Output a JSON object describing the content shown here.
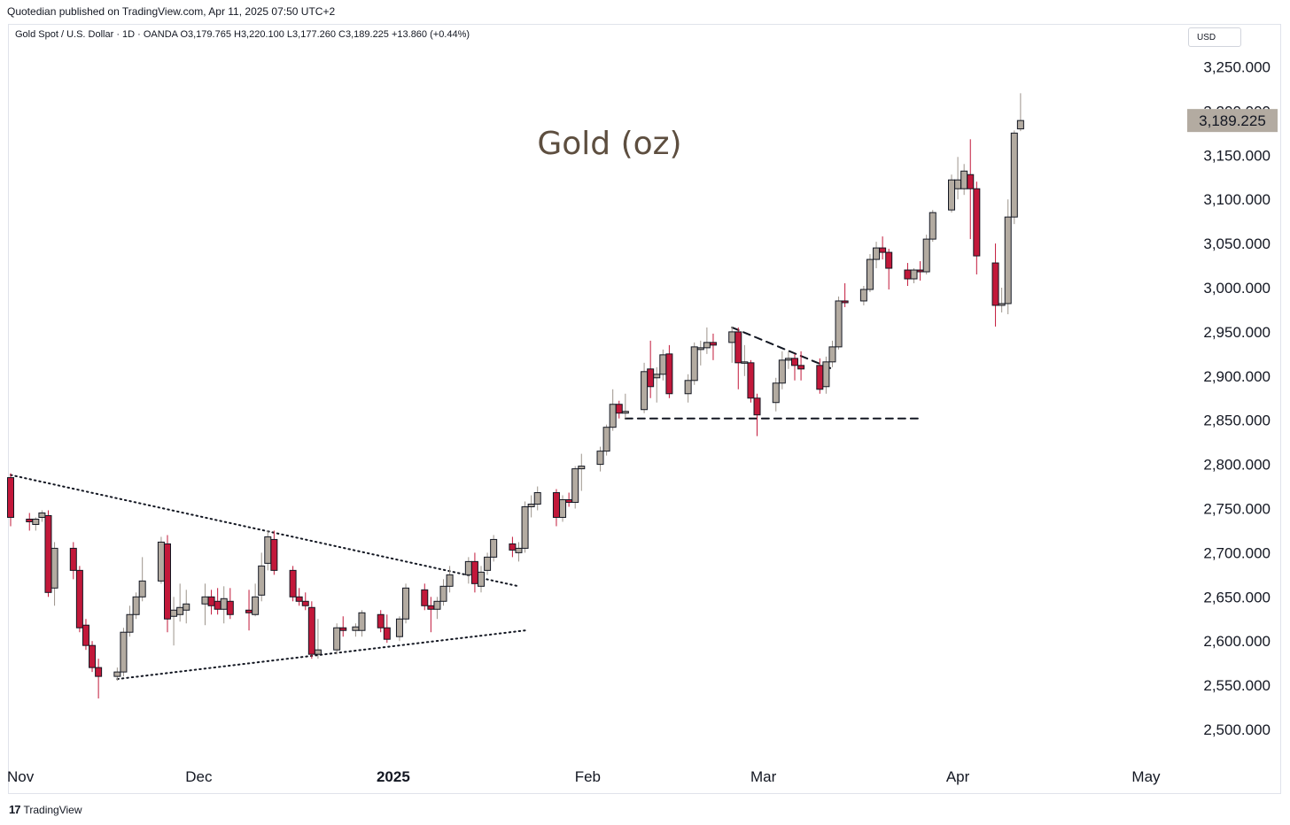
{
  "header": {
    "caption": "Quotedian published on TradingView.com, Apr 11, 2025 07:50 UTC+2",
    "legend": "Gold Spot / U.S. Dollar · 1D · OANDA  O3,179.765  H3,220.100  L3,177.260  C3,189.225  +13.860 (+0.44%)",
    "currency": "USD"
  },
  "footer": {
    "brand": "TradingView",
    "logo_icon": "tradingview-logo-icon"
  },
  "colors": {
    "up": "#b3aba1",
    "down": "#c2183a",
    "price_badge": "#b3aba1",
    "title": "#5d4e3f"
  },
  "chart_data": {
    "type": "candlestick",
    "title": "Gold (oz)",
    "ylim": [
      2475,
      3280
    ],
    "y_ticks": [
      2500,
      2550,
      2600,
      2650,
      2700,
      2750,
      2800,
      2850,
      2900,
      2950,
      3000,
      3050,
      3100,
      3150,
      3200,
      3250
    ],
    "y_tick_labels": [
      "2,500.000",
      "2,550.000",
      "2,600.000",
      "2,650.000",
      "2,700.000",
      "2,750.000",
      "2,800.000",
      "2,850.000",
      "2,900.000",
      "2,950.000",
      "3,000.000",
      "3,050.000",
      "3,100.000",
      "3,150.000",
      "3,200.000",
      "3,250.000"
    ],
    "last_price": 3189.225,
    "last_price_label": "3,189.225",
    "x_labels": [
      {
        "label": "Nov",
        "date": "2024-11-01"
      },
      {
        "label": "Dec",
        "date": "2024-12-01"
      },
      {
        "label": "2025",
        "date": "2025-01-01"
      },
      {
        "label": "Feb",
        "date": "2025-02-01"
      },
      {
        "label": "Mar",
        "date": "2025-03-01"
      },
      {
        "label": "Apr",
        "date": "2025-04-01"
      },
      {
        "label": "May",
        "date": "2025-05-01"
      }
    ],
    "candles": [
      {
        "date": "2024-11-01",
        "o": 2785,
        "h": 2790,
        "l": 2730,
        "c": 2740
      },
      {
        "date": "2024-11-04",
        "o": 2738,
        "h": 2745,
        "l": 2725,
        "c": 2735
      },
      {
        "date": "2024-11-05",
        "o": 2732,
        "h": 2740,
        "l": 2725,
        "c": 2738
      },
      {
        "date": "2024-11-06",
        "o": 2740,
        "h": 2748,
        "l": 2735,
        "c": 2745
      },
      {
        "date": "2024-11-07",
        "o": 2742,
        "h": 2748,
        "l": 2650,
        "c": 2655
      },
      {
        "date": "2024-11-08",
        "o": 2660,
        "h": 2712,
        "l": 2640,
        "c": 2705
      },
      {
        "date": "2024-11-11",
        "o": 2705,
        "h": 2712,
        "l": 2670,
        "c": 2680
      },
      {
        "date": "2024-11-12",
        "o": 2680,
        "h": 2685,
        "l": 2610,
        "c": 2615
      },
      {
        "date": "2024-11-13",
        "o": 2618,
        "h": 2625,
        "l": 2590,
        "c": 2595
      },
      {
        "date": "2024-11-14",
        "o": 2595,
        "h": 2600,
        "l": 2565,
        "c": 2570
      },
      {
        "date": "2024-11-15",
        "o": 2570,
        "h": 2580,
        "l": 2535,
        "c": 2560
      },
      {
        "date": "2024-11-18",
        "o": 2560,
        "h": 2570,
        "l": 2555,
        "c": 2565
      },
      {
        "date": "2024-11-19",
        "o": 2565,
        "h": 2615,
        "l": 2560,
        "c": 2610
      },
      {
        "date": "2024-11-20",
        "o": 2610,
        "h": 2640,
        "l": 2605,
        "c": 2630
      },
      {
        "date": "2024-11-21",
        "o": 2630,
        "h": 2655,
        "l": 2625,
        "c": 2650
      },
      {
        "date": "2024-11-22",
        "o": 2650,
        "h": 2695,
        "l": 2645,
        "c": 2668
      },
      {
        "date": "2024-11-25",
        "o": 2668,
        "h": 2718,
        "l": 2665,
        "c": 2712
      },
      {
        "date": "2024-11-26",
        "o": 2710,
        "h": 2720,
        "l": 2610,
        "c": 2625
      },
      {
        "date": "2024-11-27",
        "o": 2628,
        "h": 2650,
        "l": 2595,
        "c": 2635
      },
      {
        "date": "2024-11-28",
        "o": 2630,
        "h": 2665,
        "l": 2622,
        "c": 2638
      },
      {
        "date": "2024-11-29",
        "o": 2635,
        "h": 2658,
        "l": 2620,
        "c": 2642
      },
      {
        "date": "2024-12-02",
        "o": 2642,
        "h": 2665,
        "l": 2618,
        "c": 2650
      },
      {
        "date": "2024-12-03",
        "o": 2650,
        "h": 2658,
        "l": 2630,
        "c": 2640
      },
      {
        "date": "2024-12-04",
        "o": 2645,
        "h": 2660,
        "l": 2630,
        "c": 2636
      },
      {
        "date": "2024-12-05",
        "o": 2636,
        "h": 2662,
        "l": 2620,
        "c": 2648
      },
      {
        "date": "2024-12-06",
        "o": 2645,
        "h": 2660,
        "l": 2625,
        "c": 2630
      },
      {
        "date": "2024-12-09",
        "o": 2635,
        "h": 2658,
        "l": 2612,
        "c": 2632
      },
      {
        "date": "2024-12-10",
        "o": 2630,
        "h": 2665,
        "l": 2628,
        "c": 2650
      },
      {
        "date": "2024-12-11",
        "o": 2652,
        "h": 2700,
        "l": 2645,
        "c": 2685
      },
      {
        "date": "2024-12-12",
        "o": 2688,
        "h": 2725,
        "l": 2680,
        "c": 2718
      },
      {
        "date": "2024-12-13",
        "o": 2715,
        "h": 2725,
        "l": 2675,
        "c": 2680
      },
      {
        "date": "2024-12-16",
        "o": 2680,
        "h": 2685,
        "l": 2645,
        "c": 2650
      },
      {
        "date": "2024-12-17",
        "o": 2650,
        "h": 2660,
        "l": 2640,
        "c": 2645
      },
      {
        "date": "2024-12-18",
        "o": 2645,
        "h": 2655,
        "l": 2635,
        "c": 2640
      },
      {
        "date": "2024-12-19",
        "o": 2638,
        "h": 2645,
        "l": 2580,
        "c": 2585
      },
      {
        "date": "2024-12-20",
        "o": 2585,
        "h": 2625,
        "l": 2580,
        "c": 2590
      },
      {
        "date": "2024-12-23",
        "o": 2590,
        "h": 2620,
        "l": 2585,
        "c": 2615
      },
      {
        "date": "2024-12-24",
        "o": 2615,
        "h": 2628,
        "l": 2605,
        "c": 2612
      },
      {
        "date": "2024-12-26",
        "o": 2612,
        "h": 2620,
        "l": 2605,
        "c": 2616
      },
      {
        "date": "2024-12-27",
        "o": 2612,
        "h": 2635,
        "l": 2605,
        "c": 2632
      },
      {
        "date": "2024-12-30",
        "o": 2630,
        "h": 2635,
        "l": 2610,
        "c": 2615
      },
      {
        "date": "2024-12-31",
        "o": 2615,
        "h": 2630,
        "l": 2598,
        "c": 2602
      },
      {
        "date": "2025-01-02",
        "o": 2605,
        "h": 2628,
        "l": 2600,
        "c": 2625
      },
      {
        "date": "2025-01-03",
        "o": 2625,
        "h": 2665,
        "l": 2620,
        "c": 2660
      },
      {
        "date": "2025-01-06",
        "o": 2658,
        "h": 2665,
        "l": 2635,
        "c": 2640
      },
      {
        "date": "2025-01-07",
        "o": 2640,
        "h": 2650,
        "l": 2610,
        "c": 2636
      },
      {
        "date": "2025-01-08",
        "o": 2636,
        "h": 2650,
        "l": 2625,
        "c": 2645
      },
      {
        "date": "2025-01-09",
        "o": 2645,
        "h": 2670,
        "l": 2640,
        "c": 2662
      },
      {
        "date": "2025-01-10",
        "o": 2662,
        "h": 2685,
        "l": 2655,
        "c": 2675
      },
      {
        "date": "2025-01-13",
        "o": 2675,
        "h": 2695,
        "l": 2665,
        "c": 2690
      },
      {
        "date": "2025-01-14",
        "o": 2690,
        "h": 2700,
        "l": 2655,
        "c": 2665
      },
      {
        "date": "2025-01-15",
        "o": 2662,
        "h": 2685,
        "l": 2655,
        "c": 2678
      },
      {
        "date": "2025-01-16",
        "o": 2680,
        "h": 2700,
        "l": 2675,
        "c": 2695
      },
      {
        "date": "2025-01-17",
        "o": 2695,
        "h": 2720,
        "l": 2690,
        "c": 2715
      },
      {
        "date": "2025-01-20",
        "o": 2710,
        "h": 2718,
        "l": 2695,
        "c": 2703
      },
      {
        "date": "2025-01-21",
        "o": 2700,
        "h": 2712,
        "l": 2690,
        "c": 2705
      },
      {
        "date": "2025-01-22",
        "o": 2705,
        "h": 2758,
        "l": 2700,
        "c": 2752
      },
      {
        "date": "2025-01-23",
        "o": 2752,
        "h": 2765,
        "l": 2740,
        "c": 2755
      },
      {
        "date": "2025-01-24",
        "o": 2755,
        "h": 2775,
        "l": 2748,
        "c": 2768
      },
      {
        "date": "2025-01-27",
        "o": 2768,
        "h": 2772,
        "l": 2730,
        "c": 2740
      },
      {
        "date": "2025-01-28",
        "o": 2740,
        "h": 2765,
        "l": 2735,
        "c": 2760
      },
      {
        "date": "2025-01-29",
        "o": 2760,
        "h": 2768,
        "l": 2752,
        "c": 2757
      },
      {
        "date": "2025-01-30",
        "o": 2757,
        "h": 2798,
        "l": 2750,
        "c": 2795
      },
      {
        "date": "2025-01-31",
        "o": 2795,
        "h": 2812,
        "l": 2770,
        "c": 2798
      },
      {
        "date": "2025-02-03",
        "o": 2800,
        "h": 2820,
        "l": 2792,
        "c": 2815
      },
      {
        "date": "2025-02-04",
        "o": 2815,
        "h": 2845,
        "l": 2810,
        "c": 2842
      },
      {
        "date": "2025-02-05",
        "o": 2842,
        "h": 2885,
        "l": 2838,
        "c": 2868
      },
      {
        "date": "2025-02-06",
        "o": 2868,
        "h": 2872,
        "l": 2852,
        "c": 2858
      },
      {
        "date": "2025-02-07",
        "o": 2858,
        "h": 2880,
        "l": 2852,
        "c": 2860
      },
      {
        "date": "2025-02-10",
        "o": 2862,
        "h": 2915,
        "l": 2858,
        "c": 2905
      },
      {
        "date": "2025-02-11",
        "o": 2908,
        "h": 2940,
        "l": 2875,
        "c": 2888
      },
      {
        "date": "2025-02-12",
        "o": 2898,
        "h": 2910,
        "l": 2870,
        "c": 2902
      },
      {
        "date": "2025-02-13",
        "o": 2902,
        "h": 2930,
        "l": 2895,
        "c": 2924
      },
      {
        "date": "2025-02-14",
        "o": 2925,
        "h": 2935,
        "l": 2875,
        "c": 2880
      },
      {
        "date": "2025-02-17",
        "o": 2880,
        "h": 2902,
        "l": 2870,
        "c": 2895
      },
      {
        "date": "2025-02-18",
        "o": 2895,
        "h": 2938,
        "l": 2890,
        "c": 2933
      },
      {
        "date": "2025-02-19",
        "o": 2930,
        "h": 2940,
        "l": 2912,
        "c": 2932
      },
      {
        "date": "2025-02-20",
        "o": 2932,
        "h": 2955,
        "l": 2925,
        "c": 2938
      },
      {
        "date": "2025-02-21",
        "o": 2938,
        "h": 2948,
        "l": 2918,
        "c": 2935
      },
      {
        "date": "2025-02-24",
        "o": 2938,
        "h": 2956,
        "l": 2915,
        "c": 2950
      },
      {
        "date": "2025-02-25",
        "o": 2950,
        "h": 2955,
        "l": 2885,
        "c": 2915
      },
      {
        "date": "2025-02-26",
        "o": 2915,
        "h": 2935,
        "l": 2900,
        "c": 2916
      },
      {
        "date": "2025-02-27",
        "o": 2915,
        "h": 2918,
        "l": 2870,
        "c": 2875
      },
      {
        "date": "2025-02-28",
        "o": 2875,
        "h": 2880,
        "l": 2832,
        "c": 2856
      },
      {
        "date": "2025-03-03",
        "o": 2870,
        "h": 2898,
        "l": 2860,
        "c": 2892
      },
      {
        "date": "2025-03-04",
        "o": 2892,
        "h": 2928,
        "l": 2885,
        "c": 2918
      },
      {
        "date": "2025-03-05",
        "o": 2918,
        "h": 2928,
        "l": 2908,
        "c": 2920
      },
      {
        "date": "2025-03-06",
        "o": 2920,
        "h": 2925,
        "l": 2895,
        "c": 2912
      },
      {
        "date": "2025-03-07",
        "o": 2912,
        "h": 2928,
        "l": 2895,
        "c": 2908
      },
      {
        "date": "2025-03-10",
        "o": 2912,
        "h": 2920,
        "l": 2880,
        "c": 2885
      },
      {
        "date": "2025-03-11",
        "o": 2888,
        "h": 2922,
        "l": 2880,
        "c": 2916
      },
      {
        "date": "2025-03-12",
        "o": 2916,
        "h": 2940,
        "l": 2910,
        "c": 2933
      },
      {
        "date": "2025-03-13",
        "o": 2933,
        "h": 2990,
        "l": 2930,
        "c": 2985
      },
      {
        "date": "2025-03-14",
        "o": 2985,
        "h": 3005,
        "l": 2978,
        "c": 2983
      },
      {
        "date": "2025-03-17",
        "o": 2985,
        "h": 3002,
        "l": 2980,
        "c": 2998
      },
      {
        "date": "2025-03-18",
        "o": 2998,
        "h": 3038,
        "l": 2995,
        "c": 3032
      },
      {
        "date": "2025-03-19",
        "o": 3032,
        "h": 3052,
        "l": 3022,
        "c": 3045
      },
      {
        "date": "2025-03-20",
        "o": 3045,
        "h": 3058,
        "l": 3032,
        "c": 3040
      },
      {
        "date": "2025-03-21",
        "o": 3040,
        "h": 3044,
        "l": 2998,
        "c": 3022
      },
      {
        "date": "2025-03-24",
        "o": 3020,
        "h": 3028,
        "l": 3002,
        "c": 3010
      },
      {
        "date": "2025-03-25",
        "o": 3010,
        "h": 3022,
        "l": 3005,
        "c": 3020
      },
      {
        "date": "2025-03-26",
        "o": 3020,
        "h": 3030,
        "l": 3008,
        "c": 3018
      },
      {
        "date": "2025-03-27",
        "o": 3018,
        "h": 3060,
        "l": 3015,
        "c": 3055
      },
      {
        "date": "2025-03-28",
        "o": 3055,
        "h": 3088,
        "l": 3052,
        "c": 3085
      },
      {
        "date": "2025-03-31",
        "o": 3088,
        "h": 3128,
        "l": 3085,
        "c": 3122
      },
      {
        "date": "2025-04-01",
        "o": 3112,
        "h": 3148,
        "l": 3100,
        "c": 3122
      },
      {
        "date": "2025-04-02",
        "o": 3112,
        "h": 3140,
        "l": 3105,
        "c": 3132
      },
      {
        "date": "2025-04-03",
        "o": 3128,
        "h": 3168,
        "l": 3055,
        "c": 3112
      },
      {
        "date": "2025-04-04",
        "o": 3112,
        "h": 3120,
        "l": 3015,
        "c": 3036
      },
      {
        "date": "2025-04-07",
        "o": 3028,
        "h": 3050,
        "l": 2956,
        "c": 2980
      },
      {
        "date": "2025-04-08",
        "o": 2980,
        "h": 3000,
        "l": 2972,
        "c": 2982
      },
      {
        "date": "2025-04-09",
        "o": 2982,
        "h": 3100,
        "l": 2970,
        "c": 3080
      },
      {
        "date": "2025-04-10",
        "o": 3080,
        "h": 3178,
        "l": 3072,
        "c": 3175
      },
      {
        "date": "2025-04-11",
        "o": 3179.765,
        "h": 3220.1,
        "l": 3177.26,
        "c": 3189.225
      }
    ],
    "annotations": [
      {
        "type": "dotted-trendline",
        "from": {
          "date": "2024-11-01",
          "y": 2788
        },
        "to": {
          "date": "2025-01-21",
          "y": 2662
        }
      },
      {
        "type": "dotted-trendline",
        "from": {
          "date": "2024-11-18",
          "y": 2557
        },
        "to": {
          "date": "2025-01-22",
          "y": 2612
        }
      },
      {
        "type": "dashed-line",
        "from": {
          "date": "2025-02-24",
          "y": 2955
        },
        "to": {
          "date": "2025-03-12",
          "y": 2908
        }
      },
      {
        "type": "dashed-line",
        "from": {
          "date": "2025-02-07",
          "y": 2852
        },
        "to": {
          "date": "2025-03-26",
          "y": 2852
        }
      }
    ]
  }
}
